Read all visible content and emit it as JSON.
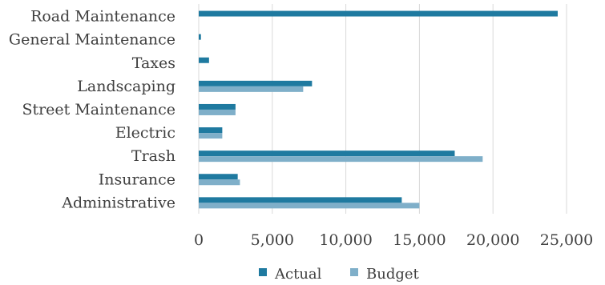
{
  "chart_data": {
    "type": "bar",
    "orientation": "horizontal",
    "categories": [
      "Road Maintenance",
      "General Maintenance",
      "Taxes",
      "Landscaping",
      "Street Maintenance",
      "Electric",
      "Trash",
      "Insurance",
      "Administrative"
    ],
    "series": [
      {
        "name": "Actual",
        "values": [
          24400,
          150,
          700,
          7700,
          2500,
          1600,
          17400,
          2650,
          13800
        ],
        "color": "#1f7aa0"
      },
      {
        "name": "Budget",
        "values": [
          0,
          0,
          0,
          7100,
          2500,
          1600,
          19300,
          2800,
          15000
        ],
        "color": "#7fafc9"
      }
    ],
    "xlim": [
      0,
      25000
    ],
    "xticks": [
      "0",
      "5,000",
      "10,000",
      "15,000",
      "20,000",
      "25,000"
    ],
    "grid": true,
    "legend_position": "bottom"
  }
}
